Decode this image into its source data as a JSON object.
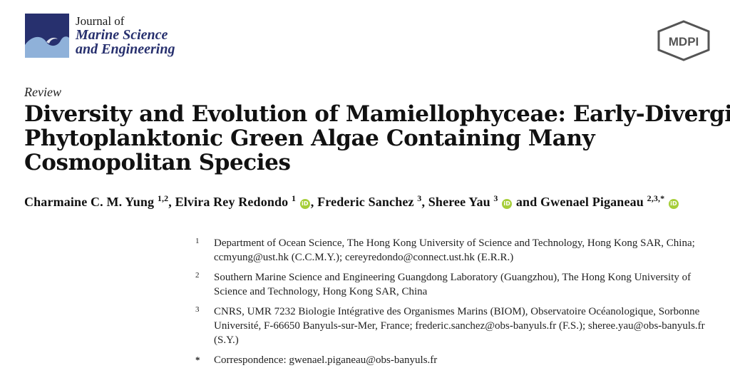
{
  "header": {
    "journal_line1": "Journal of",
    "journal_line2": "Marine Science",
    "journal_line3": "and Engineering",
    "publisher": "MDPI",
    "colors": {
      "journal_blue": "#27306e",
      "logo_light": "#8fb1d9",
      "orcid_green": "#a6ce39"
    }
  },
  "article": {
    "type": "Review",
    "title_lines": [
      "Diversity and Evolution of Mamiellophyceae: Early-Diverging",
      "Phytoplanktonic Green Algae Containing Many",
      "Cosmopolitan Species"
    ],
    "authors": [
      {
        "name": "Charmaine C. M. Yung",
        "sup": "1,2",
        "orcid": false,
        "sep": ", "
      },
      {
        "name": "Elvira Rey Redondo",
        "sup": "1",
        "orcid": true,
        "sep": ", "
      },
      {
        "name": "Frederic Sanchez",
        "sup": "3",
        "orcid": false,
        "sep": ", "
      },
      {
        "name": "Sheree Yau",
        "sup": "3",
        "orcid": true,
        "sep": " and "
      },
      {
        "name": "Gwenael Piganeau",
        "sup": "2,3,*",
        "orcid": true,
        "sep": ""
      }
    ],
    "affiliations": [
      {
        "marker": "1",
        "text": "Department of Ocean Science, The Hong Kong University of Science and Technology, Hong Kong SAR, China; ccmyung@ust.hk (C.C.M.Y.); cereyredondo@connect.ust.hk (E.R.R.)"
      },
      {
        "marker": "2",
        "text": "Southern Marine Science and Engineering Guangdong Laboratory (Guangzhou), The Hong Kong University of Science and Technology, Hong Kong SAR, China"
      },
      {
        "marker": "3",
        "text": "CNRS, UMR 7232 Biologie Intégrative des Organismes Marins (BIOM), Observatoire Océanologique, Sorbonne Université, F-66650 Banyuls-sur-Mer, France; frederic.sanchez@obs-banyuls.fr (F.S.); sheree.yau@obs-banyuls.fr (S.Y.)"
      },
      {
        "marker": "*",
        "text": "Correspondence: gwenael.piganeau@obs-banyuls.fr"
      }
    ]
  }
}
